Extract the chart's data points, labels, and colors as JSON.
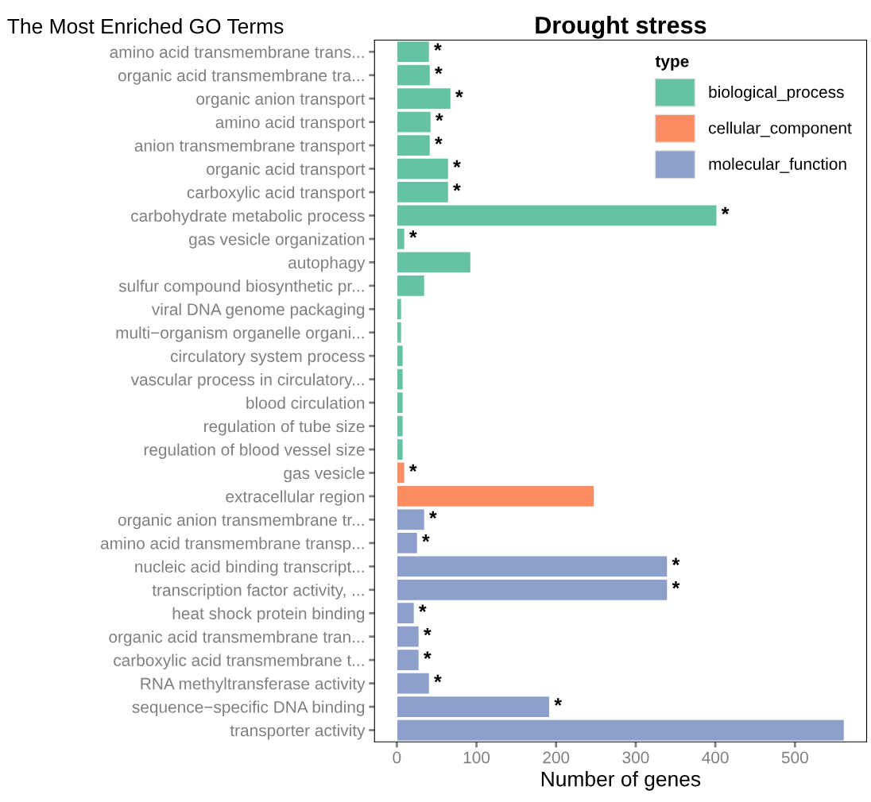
{
  "chart_data": {
    "type": "bar",
    "orientation": "horizontal",
    "title": "Drought stress",
    "xlabel": "Number of genes",
    "legend_title": "type",
    "legend": "top right",
    "grid": false,
    "annotations": [
      "The Most Enriched GO Terms"
    ],
    "categories": [
      "amino acid transmembrane trans...",
      "organic acid transmembrane tra...",
      "organic anion transport",
      "amino acid transport",
      "anion transmembrane transport",
      "organic acid transport",
      "carboxylic acid transport",
      "carbohydrate metabolic process",
      "gas vesicle organization",
      "autophagy",
      "sulfur compound biosynthetic pr...",
      "viral DNA genome packaging",
      "multi−organism organelle organi...",
      "circulatory system process",
      "vascular process in circulatory...",
      "blood circulation",
      "regulation of tube size",
      "regulation of blood vessel size",
      "gas vesicle",
      "extracellular region",
      "organic anion transmembrane tr...",
      "amino acid transmembrane transp...",
      "nucleic acid binding transcript...",
      "transcription factor activity, ...",
      "heat shock protein binding",
      "organic acid transmembrane tran...",
      "carboxylic acid transmembrane t...",
      "RNA methyltransferase activity",
      "sequence−specific DNA binding",
      "transporter activity"
    ],
    "series": [
      {
        "name": "biological_process",
        "color": "#66c2a5",
        "values": [
          41,
          42,
          68,
          43,
          42,
          65,
          65,
          402,
          10,
          93,
          35,
          6,
          6,
          8,
          8,
          8,
          8,
          8,
          null,
          null,
          null,
          null,
          null,
          null,
          null,
          null,
          null,
          null,
          null,
          null
        ],
        "value_labels": [
          "*",
          "*",
          "*",
          "*",
          "*",
          "*",
          "*",
          "*",
          "*",
          null,
          null,
          null,
          null,
          null,
          null,
          null,
          null,
          null,
          null,
          null,
          null,
          null,
          null,
          null,
          null,
          null,
          null,
          null,
          null,
          null
        ]
      },
      {
        "name": "cellular_component",
        "color": "#fc8d62",
        "values": [
          null,
          null,
          null,
          null,
          null,
          null,
          null,
          null,
          null,
          null,
          null,
          null,
          null,
          null,
          null,
          null,
          null,
          null,
          10,
          248,
          null,
          null,
          null,
          null,
          null,
          null,
          null,
          null,
          null,
          null
        ],
        "value_labels": [
          null,
          null,
          null,
          null,
          null,
          null,
          null,
          null,
          null,
          null,
          null,
          null,
          null,
          null,
          null,
          null,
          null,
          null,
          "*",
          null,
          null,
          null,
          null,
          null,
          null,
          null,
          null,
          null,
          null,
          null
        ]
      },
      {
        "name": "molecular_function",
        "color": "#8da0cb",
        "values": [
          null,
          null,
          null,
          null,
          null,
          null,
          null,
          null,
          null,
          null,
          null,
          null,
          null,
          null,
          null,
          null,
          null,
          null,
          null,
          null,
          35,
          26,
          340,
          340,
          22,
          28,
          28,
          41,
          192,
          562
        ],
        "value_labels": [
          null,
          null,
          null,
          null,
          null,
          null,
          null,
          null,
          null,
          null,
          null,
          null,
          null,
          null,
          null,
          null,
          null,
          null,
          null,
          null,
          "*",
          "*",
          "*",
          "*",
          "*",
          "*",
          "*",
          "*",
          "*",
          null
        ]
      }
    ],
    "xlim": [
      -28,
      590
    ],
    "xticks": [
      0,
      100,
      200,
      300,
      400,
      500
    ]
  }
}
